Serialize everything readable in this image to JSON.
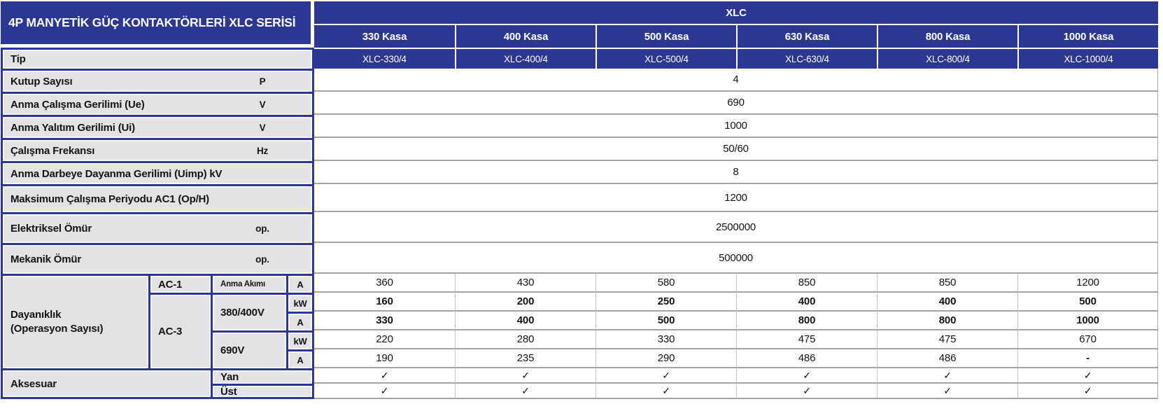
{
  "title": "4P MANYETİK GÜÇ KONTAKTÖRLERİ XLC SERİSİ",
  "series": "XLC",
  "frames": [
    "330 Kasa",
    "400 Kasa",
    "500 Kasa",
    "630 Kasa",
    "800 Kasa",
    "1000 Kasa"
  ],
  "type_row_label": "Tip",
  "models": [
    "XLC-330/4",
    "XLC-400/4",
    "XLC-500/4",
    "XLC-630/4",
    "XLC-800/4",
    "XLC-1000/4"
  ],
  "spec_rows": [
    {
      "label": "Kutup Sayısı",
      "unit": "P",
      "value": "4"
    },
    {
      "label": "Anma Çalışma Gerilimi (Ue)",
      "unit": "V",
      "value": "690"
    },
    {
      "label": "Anma Yalıtım Gerilimi (Ui)",
      "unit": "V",
      "value": "1000"
    },
    {
      "label": "Çalışma Frekansı",
      "unit": "Hz",
      "value": "50/60"
    },
    {
      "label": "Anma Darbeye Dayanma Gerilimi (Uimp) kV",
      "unit": "",
      "value": "8"
    },
    {
      "label": "Maksimum Çalışma Periyodu AC1 (Op/H)",
      "unit": "",
      "value": "1200"
    },
    {
      "label": "Elektriksel Ömür",
      "unit": "op.",
      "value": "2500000"
    },
    {
      "label": "Mekanik Ömür",
      "unit": "op.",
      "value": "500000"
    }
  ],
  "durability": {
    "label_line1": "Dayanıklık",
    "label_line2": "(Operasyon Sayısı)",
    "ac1": "AC-1",
    "ac3": "AC-3",
    "current_label": "Anma Akımı",
    "v380": "380/400V",
    "v690": "690V",
    "rows": [
      {
        "unit": "A",
        "values": [
          "360",
          "430",
          "580",
          "850",
          "850",
          "1200"
        ]
      },
      {
        "unit": "kW",
        "values": [
          "160",
          "200",
          "250",
          "400",
          "400",
          "500"
        ]
      },
      {
        "unit": "A",
        "values": [
          "330",
          "400",
          "500",
          "800",
          "800",
          "1000"
        ]
      },
      {
        "unit": "kW",
        "values": [
          "220",
          "280",
          "330",
          "475",
          "475",
          "670"
        ]
      },
      {
        "unit": "A",
        "values": [
          "190",
          "235",
          "290",
          "486",
          "486",
          "-"
        ]
      }
    ]
  },
  "accessories": {
    "label": "Aksesuar",
    "rows": [
      {
        "label": "Yan",
        "values": [
          "✓",
          "✓",
          "✓",
          "✓",
          "✓",
          "✓"
        ]
      },
      {
        "label": "Üst",
        "values": [
          "✓",
          "✓",
          "✓",
          "✓",
          "✓",
          "✓"
        ]
      }
    ]
  },
  "colors": {
    "header_blue": "#2b3790",
    "label_gray": "#e3e3e3",
    "row_line_gray": "#a4a4a4",
    "column_line_gray": "#c6c6c6"
  }
}
